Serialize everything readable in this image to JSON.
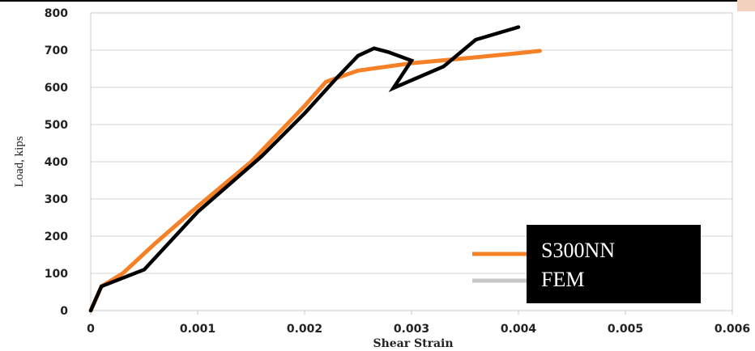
{
  "chart_data": {
    "type": "line",
    "xlabel": "Shear Strain",
    "ylabel": "Load, kips",
    "xlim": [
      0,
      0.006
    ],
    "ylim": [
      0,
      800
    ],
    "xticks": [
      "0",
      "0.001",
      "0.002",
      "0.003",
      "0.004",
      "0.005",
      "0.006"
    ],
    "yticks": [
      "0",
      "100",
      "200",
      "300",
      "400",
      "500",
      "600",
      "700",
      "800"
    ],
    "grid": "horizontal",
    "legend_position": "bottom-right",
    "series": [
      {
        "name": "S300NN",
        "color": "#f58025",
        "x": [
          0,
          0.0001,
          0.0003,
          0.0006,
          0.001,
          0.0015,
          0.002,
          0.0022,
          0.0025,
          0.003,
          0.0035,
          0.004,
          0.0042
        ],
        "y": [
          0,
          65,
          100,
          180,
          280,
          400,
          550,
          615,
          645,
          665,
          678,
          692,
          698
        ]
      },
      {
        "name": "FEM",
        "color": "#000000",
        "x": [
          0,
          0.0001,
          0.0005,
          0.001,
          0.0016,
          0.002,
          0.0023,
          0.0025,
          0.00265,
          0.00278,
          0.003,
          0.00283,
          0.0033,
          0.0036,
          0.004
        ],
        "y": [
          0,
          65,
          110,
          265,
          415,
          530,
          625,
          685,
          705,
          695,
          672,
          598,
          656,
          728,
          762
        ]
      }
    ]
  }
}
